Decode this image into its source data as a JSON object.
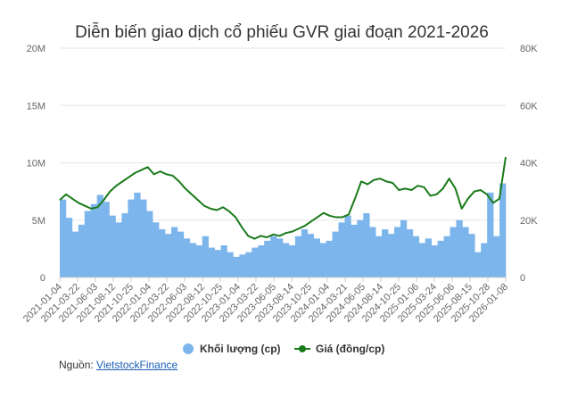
{
  "chart_data": {
    "type": "bar+line",
    "title": "Diễn biến giao dịch cổ phiếu GVR giai đoạn 2021-2026",
    "left_axis": {
      "ylim": [
        0,
        20000000
      ],
      "ticks": [
        "0",
        "5M",
        "10M",
        "15M",
        "20M"
      ]
    },
    "right_axis": {
      "ylim": [
        0,
        80000
      ],
      "ticks": [
        "0",
        "20K",
        "40K",
        "60K",
        "80K"
      ]
    },
    "x_tick_labels": [
      "2021-01-04",
      "2021-03-22",
      "2021-06-03",
      "2021-08-12",
      "2021-10-25",
      "2022-01-04",
      "2022-03-22",
      "2022-06-03",
      "2022-08-12",
      "2022-10-25",
      "2023-01-04",
      "2023-03-22",
      "2023-06-05",
      "2023-08-14",
      "2023-10-25",
      "2024-01-04",
      "2024-03-21",
      "2024-06-05",
      "2024-08-14",
      "2024-10-25",
      "2025-01-06",
      "2025-03-24",
      "2025-06-06",
      "2025-08-15",
      "2025-10-28",
      "2026-01-08"
    ],
    "grid": true,
    "legend_position": "bottom",
    "series": [
      {
        "name": "Khối lượng (cp)",
        "kind": "bar",
        "axis": "left",
        "color": "#7cb5ec",
        "values": [
          6800000,
          5200000,
          4000000,
          4600000,
          5800000,
          6400000,
          7200000,
          6600000,
          5400000,
          4800000,
          5600000,
          6800000,
          7400000,
          6800000,
          5800000,
          4800000,
          4200000,
          3800000,
          4400000,
          4000000,
          3400000,
          3000000,
          2800000,
          3600000,
          2600000,
          2400000,
          2800000,
          2200000,
          1800000,
          2000000,
          2200000,
          2600000,
          2800000,
          3200000,
          3600000,
          3400000,
          3000000,
          2800000,
          3600000,
          4200000,
          3800000,
          3400000,
          3000000,
          3200000,
          4000000,
          4800000,
          5400000,
          4600000,
          5000000,
          5600000,
          4400000,
          3600000,
          4200000,
          3800000,
          4400000,
          5000000,
          4200000,
          3600000,
          3000000,
          3400000,
          2800000,
          3200000,
          3600000,
          4400000,
          5000000,
          4400000,
          3800000,
          2200000,
          3000000,
          7400000,
          3600000,
          8200000
        ]
      },
      {
        "name": "Giá (đồng/cp)",
        "kind": "line",
        "axis": "right",
        "color": "#1a7a1a",
        "values": [
          27000,
          29000,
          27500,
          26000,
          25000,
          24000,
          24500,
          27000,
          30000,
          32000,
          33500,
          35000,
          36500,
          37500,
          38500,
          36000,
          37000,
          36000,
          35500,
          33500,
          31000,
          29000,
          27000,
          25000,
          24000,
          23500,
          24500,
          23000,
          21000,
          17500,
          14500,
          13500,
          14500,
          14000,
          15000,
          14500,
          15500,
          16000,
          17000,
          18000,
          19500,
          21000,
          22500,
          21500,
          21000,
          21000,
          22000,
          27500,
          33500,
          32500,
          34000,
          34500,
          33500,
          33000,
          30500,
          31000,
          30500,
          32000,
          31500,
          28500,
          29000,
          31000,
          34500,
          31000,
          24000,
          27500,
          30000,
          30500,
          29000,
          26000,
          27500,
          42000
        ]
      }
    ]
  },
  "source": {
    "label": "Nguồn:",
    "link_text": "VietstockFinance"
  }
}
